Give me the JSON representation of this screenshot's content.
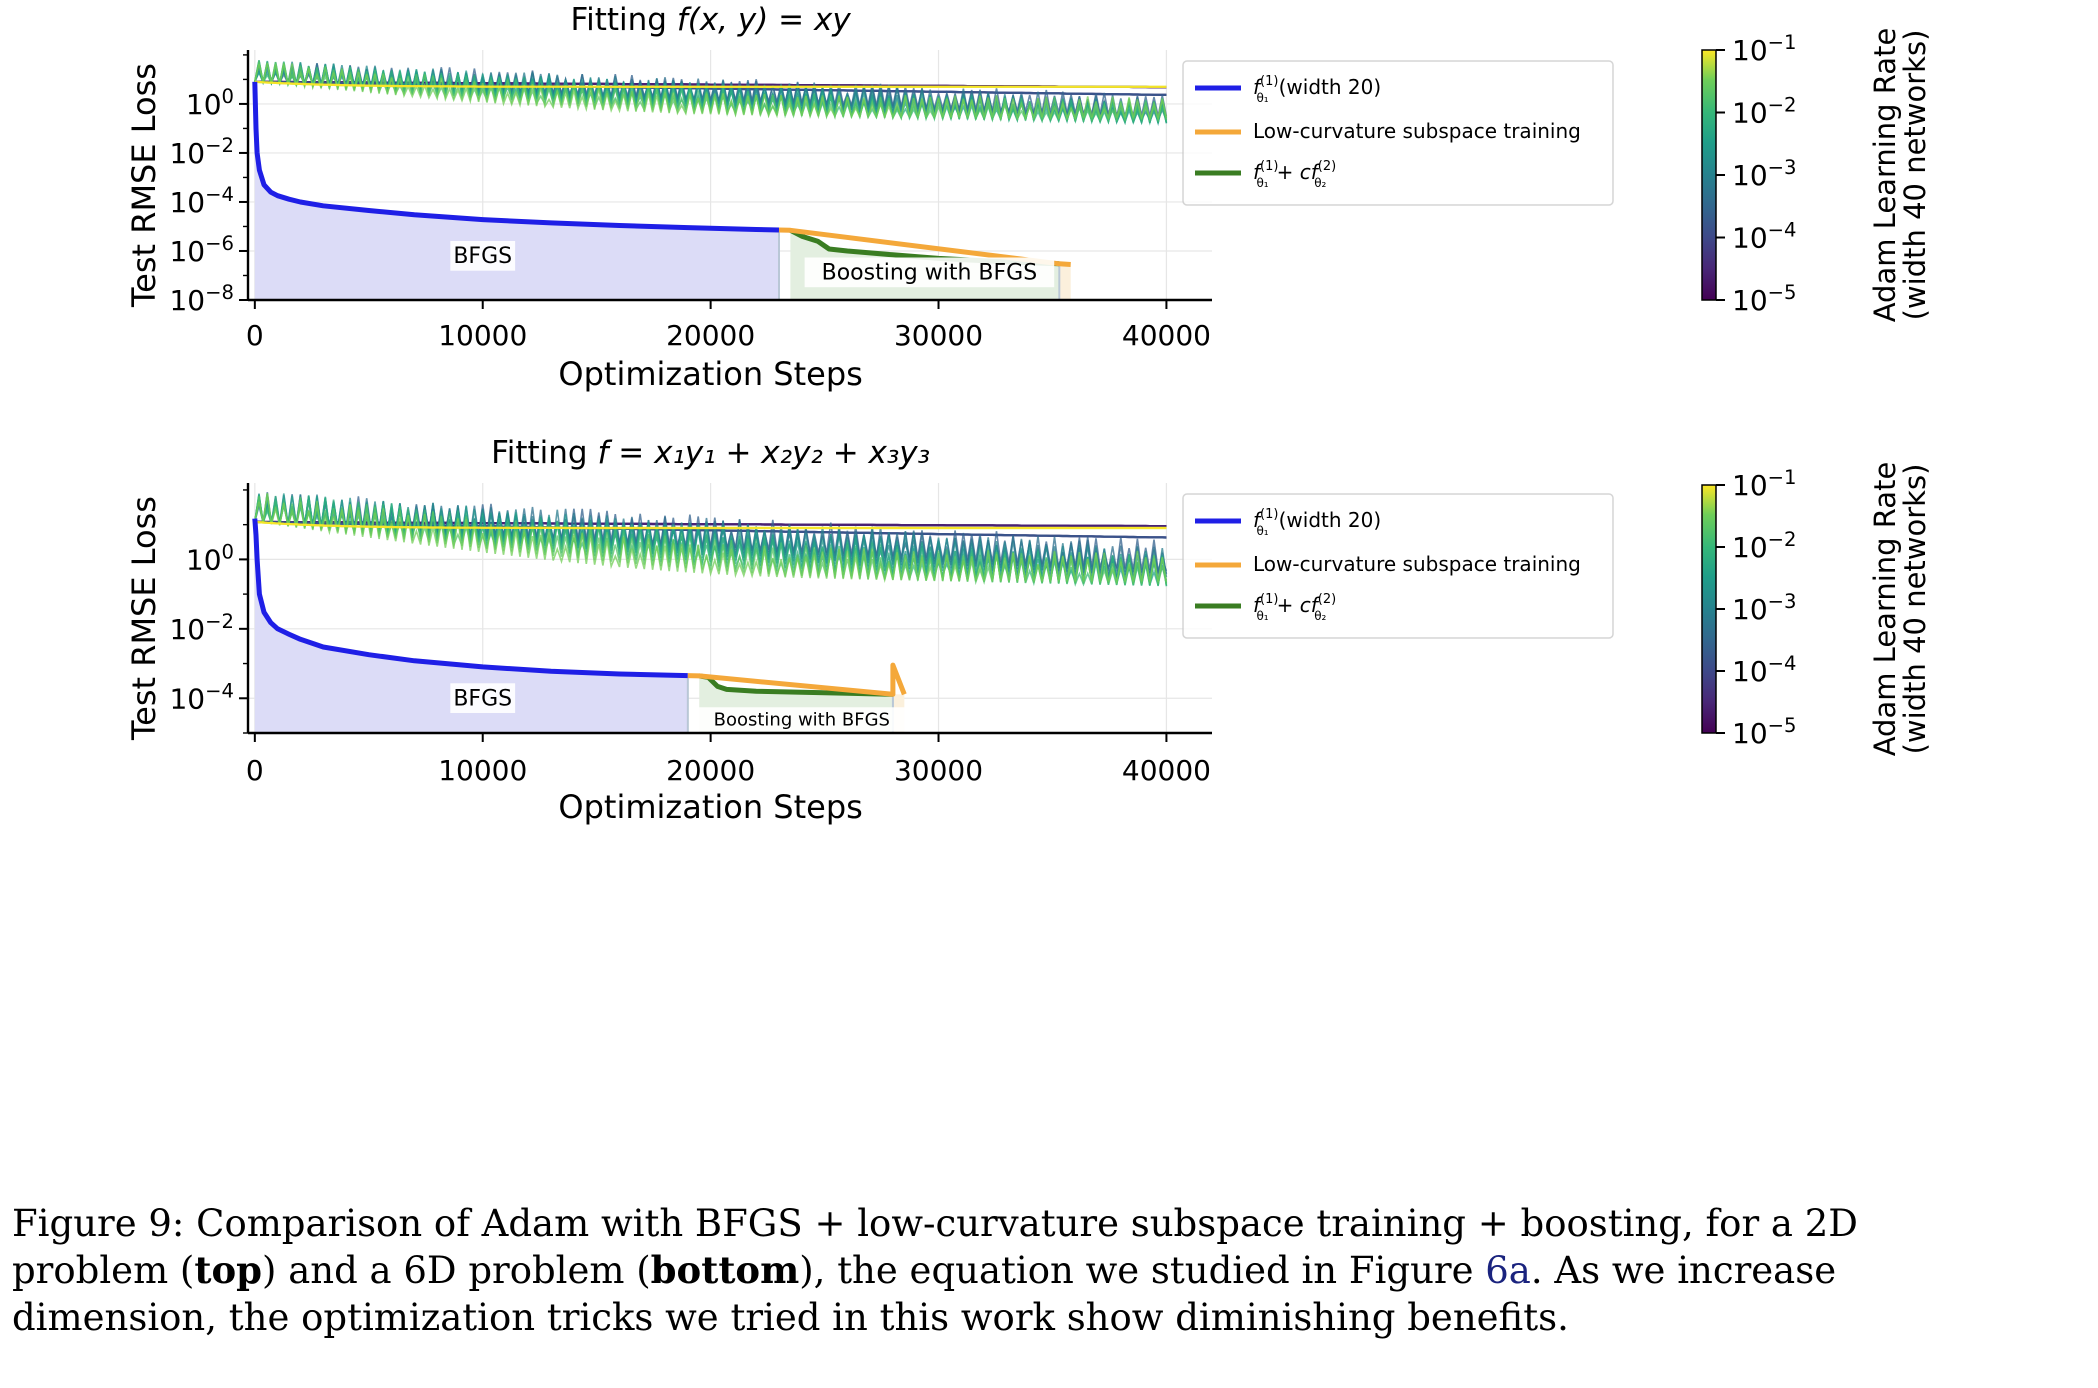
{
  "charts": [
    {
      "id": "top",
      "title_prefix": "Fitting ",
      "title_math": "f(x, y) = xy",
      "xlabel": "Optimization Steps",
      "ylabel": "Test RMSE Loss",
      "colorbar_label_1": "Adam Learning Rate",
      "colorbar_label_2": "(width 40 networks)",
      "bfgs_label": "BFGS",
      "boost_label": "Boosting with BFGS"
    },
    {
      "id": "bottom",
      "title_prefix": "Fitting ",
      "title_math": "f = x₁y₁ + x₂y₂ + x₃y₃",
      "xlabel": "Optimization Steps",
      "ylabel": "Test RMSE Loss",
      "colorbar_label_1": "Adam Learning Rate",
      "colorbar_label_2": "(width 40 networks)",
      "bfgs_label": "BFGS",
      "boost_label": "Boosting with BFGS"
    }
  ],
  "legend": {
    "item1": "f",
    "item1_sup": "(1)",
    "item1_sub": "θ₁",
    "item1_suffix": "(width 20)",
    "item2": "Low-curvature subspace training",
    "item3_a": "f",
    "item3_b": "+ cf",
    "item3_sup1": "(1)",
    "item3_sub1": "θ₁",
    "item3_sup2": "(2)",
    "item3_sub2": "θ₂"
  },
  "colors": {
    "bfgs": "#1f1fe6",
    "lowcurv": "#f4a83a",
    "boost": "#3a7d22",
    "bfgs_fill": "#dcdcf7",
    "boost_fill": "#e3efe0",
    "lowcurv_fill": "#fbf0dc"
  },
  "chart_data": [
    {
      "type": "line",
      "title": "Fitting f(x, y) = xy",
      "xlabel": "Optimization Steps",
      "ylabel": "Test RMSE Loss",
      "yscale": "log",
      "xlim": [
        -300,
        42000
      ],
      "ylim": [
        1e-08,
        200
      ],
      "xticks": [
        0,
        10000,
        20000,
        30000,
        40000
      ],
      "yticks": [
        1,
        0.01,
        0.0001,
        1e-06,
        1e-08
      ],
      "ytick_labels": [
        "10^0",
        "10^-2",
        "10^-4",
        "10^-6",
        "10^-8"
      ],
      "grid": true,
      "legend_position": "top-right",
      "colorbar": {
        "label": "Adam Learning Rate (width 40 networks)",
        "scale": "log",
        "range": [
          1e-05,
          0.1
        ],
        "ticks": [
          "10^-1",
          "10^-2",
          "10^-3",
          "10^-4",
          "10^-5"
        ],
        "colormap": "viridis"
      },
      "series": [
        {
          "name": "f_θ1^(1) (width 20)",
          "color": "#1f1fe6",
          "x": [
            0,
            50,
            100,
            200,
            400,
            700,
            1000,
            1500,
            2000,
            3000,
            5000,
            7000,
            10000,
            13000,
            16000,
            19000,
            22000,
            23000
          ],
          "y": [
            8,
            0.1,
            0.01,
            0.002,
            0.0005,
            0.00025,
            0.00018,
            0.00013,
            0.0001,
            7e-05,
            4.5e-05,
            3e-05,
            1.9e-05,
            1.4e-05,
            1.1e-05,
            9e-06,
            7.5e-06,
            7.2e-06
          ]
        },
        {
          "name": "Low-curvature subspace training",
          "color": "#f4a83a",
          "x": [
            23000,
            23500,
            35300,
            35800
          ],
          "y": [
            7.2e-06,
            7e-06,
            3e-07,
            2.8e-07
          ]
        },
        {
          "name": "f_θ1^(1) + c f_θ2^(2)",
          "color": "#3a7d22",
          "x": [
            23500,
            24000,
            24700,
            25200,
            26000,
            28000,
            30000,
            32000,
            34000,
            35300
          ],
          "y": [
            7e-06,
            4e-06,
            2.5e-06,
            1.2e-06,
            1e-06,
            7e-07,
            5e-07,
            4e-07,
            3.3e-07,
            3e-07
          ]
        }
      ],
      "annotations": [
        "BFGS",
        "Boosting with BFGS"
      ]
    },
    {
      "type": "line",
      "title": "Fitting f = x1y1 + x2y2 + x3y3",
      "xlabel": "Optimization Steps",
      "ylabel": "Test RMSE Loss",
      "yscale": "log",
      "xlim": [
        -300,
        42000
      ],
      "ylim": [
        1e-05,
        200
      ],
      "xticks": [
        0,
        10000,
        20000,
        30000,
        40000
      ],
      "yticks": [
        1,
        0.01,
        0.0001
      ],
      "ytick_labels": [
        "10^0",
        "10^-2",
        "10^-4"
      ],
      "grid": true,
      "legend_position": "top-right",
      "colorbar": {
        "label": "Adam Learning Rate (width 40 networks)",
        "scale": "log",
        "range": [
          1e-05,
          0.1
        ],
        "ticks": [
          "10^-1",
          "10^-2",
          "10^-3",
          "10^-4",
          "10^-5"
        ],
        "colormap": "viridis"
      },
      "series": [
        {
          "name": "f_θ1^(1) (width 20)",
          "color": "#1f1fe6",
          "x": [
            0,
            50,
            100,
            200,
            400,
            700,
            1000,
            1500,
            2000,
            3000,
            5000,
            7000,
            10000,
            13000,
            16000,
            19000
          ],
          "y": [
            15,
            5,
            1,
            0.1,
            0.03,
            0.015,
            0.01,
            0.007,
            0.005,
            0.003,
            0.0018,
            0.0012,
            0.0008,
            0.0006,
            0.0005,
            0.00045
          ]
        },
        {
          "name": "Low-curvature subspace training",
          "color": "#f4a83a",
          "x": [
            19000,
            19500,
            28000,
            28000,
            28500
          ],
          "y": [
            0.00045,
            0.00044,
            0.00013,
            0.0009,
            0.00013
          ]
        },
        {
          "name": "f_θ1^(1) + c f_θ2^(2)",
          "color": "#3a7d22",
          "x": [
            19500,
            19900,
            20300,
            20700,
            22000,
            24000,
            26000,
            28000
          ],
          "y": [
            0.00044,
            0.0004,
            0.00022,
            0.00018,
            0.00016,
            0.00015,
            0.00014,
            0.00013
          ]
        }
      ],
      "annotations": [
        "BFGS",
        "Boosting with BFGS"
      ]
    }
  ],
  "caption": {
    "line1": "Figure 9: Comparison of Adam with BFGS + low-curvature subspace training + boosting, for a 2D",
    "line2_a": "problem (",
    "line2_b": "top",
    "line2_c": ") and a 6D problem (",
    "line2_d": "bottom",
    "line2_e": "), the equation we studied in Figure ",
    "line2_ref": "6a",
    "line2_f": ". As we increase",
    "line3": "dimension, the optimization tricks we tried in this work show diminishing benefits."
  }
}
